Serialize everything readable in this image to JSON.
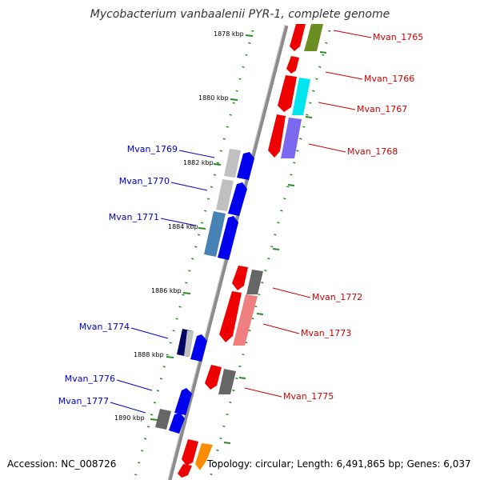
{
  "title": "Mycobacterium vanbaalenii PYR-1, complete genome",
  "footer": {
    "accession": "Accession: NC_008726",
    "topology": "Topology: circular; Length: 6,491,865 bp; Genes: 6,037"
  },
  "ruler_labels": [
    "1878 kbp",
    "1880 kbp",
    "1882 kbp",
    "1884 kbp",
    "1886 kbp",
    "1888 kbp",
    "1890 kbp"
  ],
  "gene_labels_forward": [
    "Mvan_1769",
    "Mvan_1770",
    "Mvan_1771",
    "Mvan_1774",
    "Mvan_1776",
    "Mvan_1777"
  ],
  "gene_labels_reverse": [
    "Mvan_1765",
    "Mvan_1766",
    "Mvan_1767",
    "Mvan_1768",
    "Mvan_1772",
    "Mvan_1773",
    "Mvan_1775"
  ],
  "colors": {
    "forward_label": "#0000cc",
    "reverse_label": "#cc0000",
    "tick": "#2a8a2a",
    "backbone": "#8c8c8c",
    "blue": "#0000ee",
    "red": "#ee0000",
    "olive": "#6b8e23",
    "cyan": "#00e5ee",
    "slate": "#7b68ee",
    "steel": "#4682b4",
    "grey": "#666666",
    "silver": "#c0c0c0",
    "navy": "#000066",
    "pink": "#f08080",
    "orange": "#ff8c00"
  }
}
